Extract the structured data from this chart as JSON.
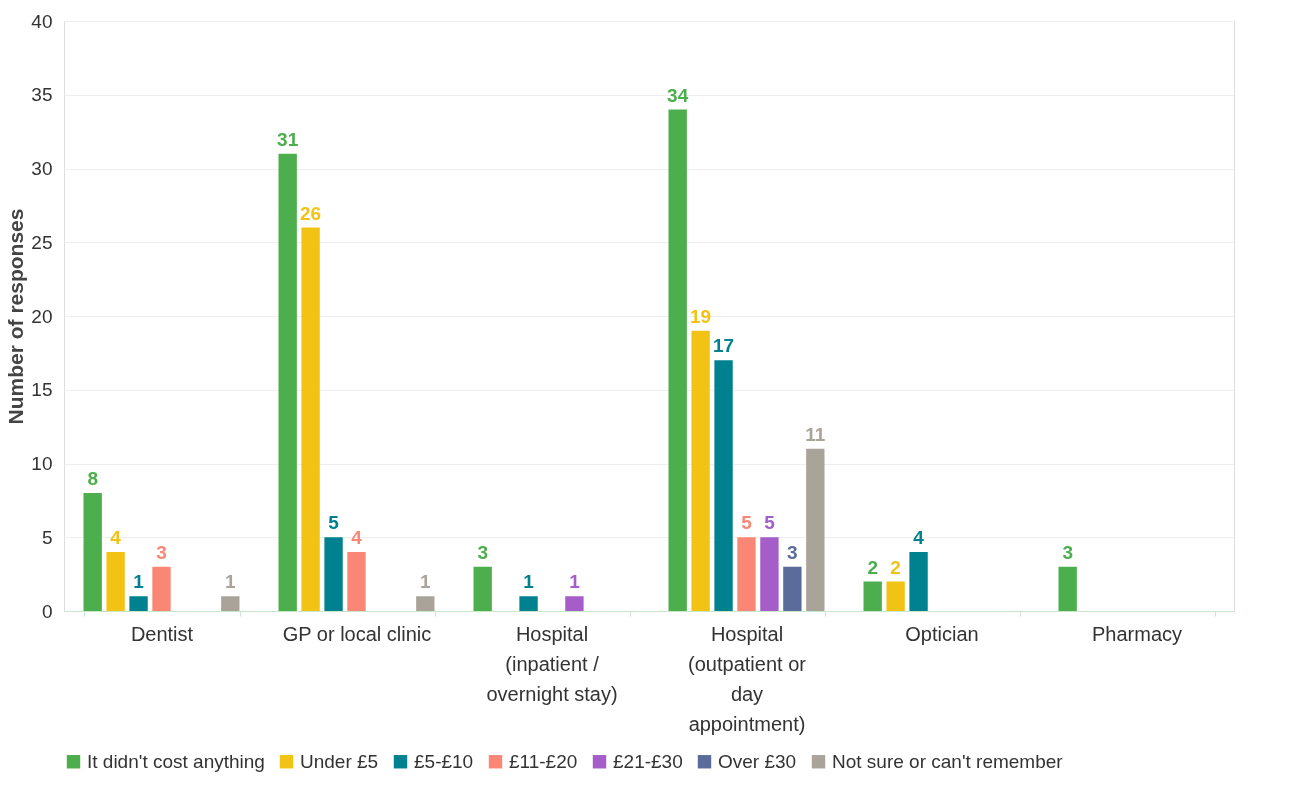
{
  "chart_data": {
    "type": "bar",
    "ylabel": "Number of responses",
    "categories": [
      "Dentist",
      "GP or local clinic",
      "Hospital (inpatient / overnight stay)",
      "Hospital (outpatient or day appointment)",
      "Optician",
      "Pharmacy"
    ],
    "series": [
      {
        "name": "It didn't cost anything",
        "color": "#4cae4c",
        "values": [
          8,
          31,
          3,
          34,
          2,
          3
        ]
      },
      {
        "name": "Under £5",
        "color": "#f2c314",
        "values": [
          4,
          26,
          null,
          19,
          2,
          null
        ]
      },
      {
        "name": "£5-£10",
        "color": "#00818f",
        "values": [
          1,
          5,
          1,
          17,
          4,
          null
        ]
      },
      {
        "name": "£11-£20",
        "color": "#fa8775",
        "values": [
          3,
          4,
          null,
          5,
          null,
          null
        ]
      },
      {
        "name": "£21-£30",
        "color": "#a45dc9",
        "values": [
          null,
          null,
          1,
          5,
          null,
          null
        ]
      },
      {
        "name": "Over £30",
        "color": "#5b6b9a",
        "values": [
          null,
          null,
          null,
          3,
          null,
          null
        ]
      },
      {
        "name": "Not sure or can't remember",
        "color": "#aaa39a",
        "values": [
          1,
          1,
          null,
          11,
          null,
          null
        ]
      }
    ],
    "ylim": [
      0,
      40
    ],
    "yticks": [
      0,
      5,
      10,
      15,
      20,
      25,
      30,
      35,
      40
    ],
    "grid": "y",
    "legend": "bottom",
    "data_labels": true
  }
}
